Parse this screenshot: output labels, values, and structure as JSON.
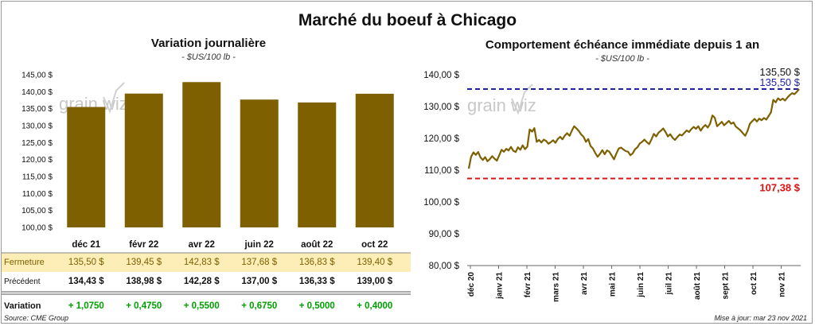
{
  "title": "Marché du boeuf à Chicago",
  "watermark": "grainwiz",
  "source": "Source: CME Group",
  "updated": "Mise à jour: mar 23 nov 2021",
  "colors": {
    "bar": "#7f6000",
    "line": "#7f6000",
    "high": "#1f1fb0",
    "low": "#e01010",
    "up": "#00a000",
    "fermeture_bg": "#fdeeb8"
  },
  "left": {
    "title": "Variation  journalière",
    "unit": "- $US/100 lb -",
    "chart_data": {
      "type": "bar",
      "categories": [
        "déc 21",
        "févr 22",
        "avr 22",
        "juin 22",
        "août 22",
        "oct 22"
      ],
      "values": [
        135.5,
        139.45,
        142.83,
        137.68,
        136.83,
        139.4
      ],
      "ylim": [
        100,
        145
      ],
      "yticks": [
        "100,00 $",
        "105,00 $",
        "110,00 $",
        "115,00 $",
        "120,00 $",
        "125,00 $",
        "130,00 $",
        "135,00 $",
        "140,00 $",
        "145,00 $"
      ]
    },
    "table": {
      "rows": [
        {
          "label": "Fermeture",
          "values": [
            "135,50  $",
            "139,45  $",
            "142,83  $",
            "137,68  $",
            "136,83  $",
            "139,40  $"
          ]
        },
        {
          "label": "Précédent",
          "values": [
            "134,43  $",
            "138,98  $",
            "142,28  $",
            "137,00  $",
            "136,33  $",
            "139,00  $"
          ]
        },
        {
          "label": "Variation",
          "values": [
            "+ 1,0750",
            "+ 0,4750",
            "+ 0,5500",
            "+ 0,6750",
            "+ 0,5000",
            "+ 0,4000"
          ]
        }
      ]
    }
  },
  "right": {
    "title": "Comportement  échéance immédiate depuis 1 an",
    "unit": "- $US/100 lb -",
    "chart_data": {
      "type": "line",
      "ylim": [
        80,
        140
      ],
      "yticks": [
        "80,00 $",
        "90,00 $",
        "100,00 $",
        "110,00 $",
        "120,00 $",
        "130,00 $",
        "140,00 $"
      ],
      "xticks": [
        "déc 20",
        "janv 21",
        "févr 21",
        "mars 21",
        "avr 21",
        "mai 21",
        "juin 21",
        "juil 21",
        "août 21",
        "sept 21",
        "oct 21",
        "nov 21"
      ],
      "series": [
        {
          "values": [
            110.5,
            114.2,
            115.6,
            114.8,
            115.7,
            114.0,
            113.2,
            114.1,
            112.8,
            113.5,
            114.4,
            113.6,
            113.0,
            114.7,
            116.4,
            115.8,
            116.7,
            116.2,
            117.3,
            116.1,
            115.7,
            117.2,
            116.4,
            117.8,
            116.6,
            117.4,
            122.8,
            122.1,
            123.2,
            118.9,
            119.5,
            118.7,
            119.6,
            119.2,
            118.3,
            118.8,
            119.4,
            118.6,
            119.8,
            120.5,
            119.7,
            120.9,
            121.6,
            120.8,
            122.4,
            123.8,
            123.1,
            122.3,
            121.2,
            120.5,
            118.9,
            119.8,
            117.6,
            116.8,
            115.4,
            114.2,
            115.1,
            116.3,
            115.0,
            116.2,
            115.8,
            114.6,
            113.4,
            115.2,
            116.8,
            117.1,
            116.5,
            116.0,
            115.8,
            114.7,
            115.3,
            116.6,
            117.2,
            118.4,
            118.9,
            119.6,
            118.8,
            118.2,
            119.7,
            121.4,
            120.6,
            121.8,
            122.4,
            123.1,
            122.0,
            120.6,
            121.3,
            120.2,
            119.5,
            120.4,
            121.2,
            120.9,
            121.7,
            122.5,
            122.0,
            122.9,
            123.6,
            123.0,
            123.8,
            122.4,
            123.5,
            124.2,
            123.4,
            124.6,
            127.2,
            126.5,
            123.8,
            124.5,
            125.2,
            124.1,
            124.8,
            125.5,
            124.6,
            125.0,
            123.7,
            123.1,
            122.5,
            121.6,
            120.8,
            122.3,
            124.6,
            125.4,
            126.1,
            125.3,
            126.2,
            125.7,
            126.4,
            125.9,
            127.0,
            128.2,
            132.1,
            131.3,
            132.6,
            132.0,
            132.5,
            131.9,
            132.8,
            133.6,
            134.2,
            133.9,
            134.6,
            135.5
          ]
        }
      ],
      "high": {
        "value": 135.5,
        "label": "135,50 $"
      },
      "low": {
        "value": 107.38,
        "label": "107,38 $"
      },
      "last_label": "135,50 $"
    }
  }
}
